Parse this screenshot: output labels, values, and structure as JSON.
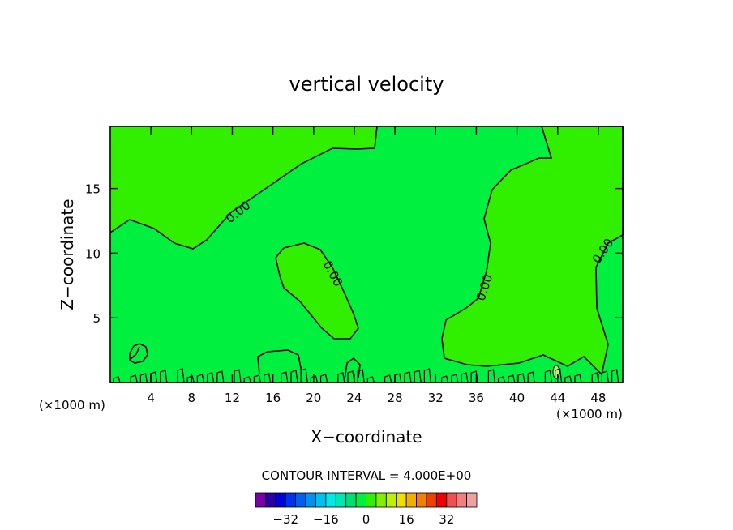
{
  "chart_data": {
    "type": "contour",
    "title": "vertical velocity",
    "xlabel": "X−coordinate",
    "ylabel": "Z−coordinate",
    "x_unit": "(×1000 m)",
    "z_unit": "(×1000 m)",
    "xlim": [
      0,
      50.4
    ],
    "ylim": [
      0,
      19.8
    ],
    "x_ticks": [
      4,
      8,
      12,
      16,
      20,
      24,
      28,
      32,
      36,
      40,
      44,
      48
    ],
    "y_ticks": [
      5,
      10,
      15
    ],
    "contour_interval_text": "CONTOUR INTERVAL = 4.000E+00",
    "contour_label": "0.00",
    "colorbar": {
      "levels": [
        -36,
        -32,
        -28,
        -24,
        -20,
        -16,
        -12,
        -8,
        -4,
        0,
        4,
        8,
        12,
        16,
        20,
        24,
        28,
        32,
        36
      ],
      "tick_labels": [
        "−32",
        "−16",
        "0",
        "16",
        "32"
      ],
      "tick_values": [
        -32,
        -16,
        0,
        16,
        32
      ],
      "colors": [
        "#7a00a8",
        "#2a00a8",
        "#0000d8",
        "#0030f0",
        "#0060f0",
        "#0090f0",
        "#00c0f0",
        "#00e8e8",
        "#00e8b0",
        "#00e070",
        "#00f040",
        "#30f000",
        "#80f000",
        "#c0f000",
        "#f0e000",
        "#f0b000",
        "#f08000",
        "#f04000",
        "#f00000",
        "#f05050",
        "#f08080",
        "#f0a0a0"
      ]
    },
    "regions": {
      "negative_color": "#00f040",
      "positive_color": "#30f000",
      "zero_contour_color": "#000000"
    }
  }
}
